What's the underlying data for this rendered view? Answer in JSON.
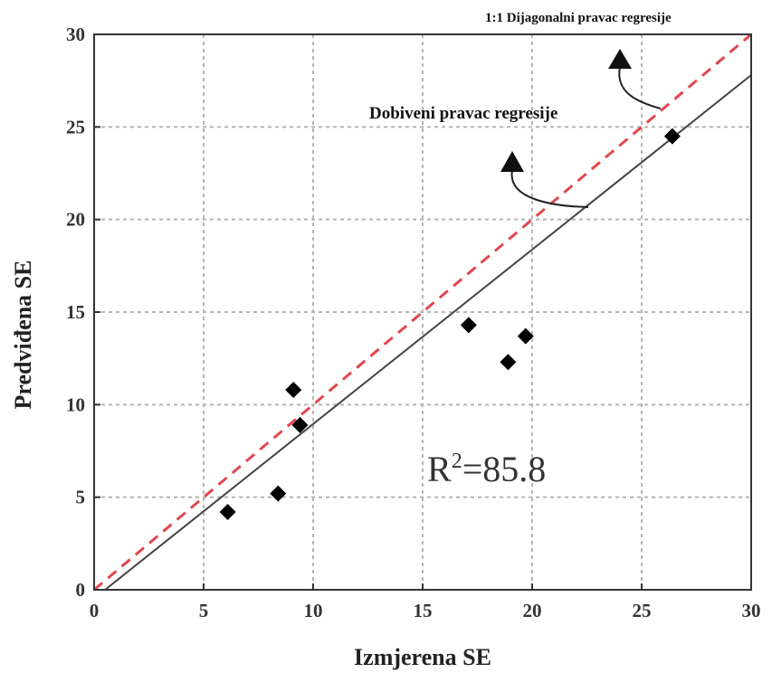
{
  "chart_data": {
    "type": "scatter",
    "title": "",
    "xlabel": "Izmjerena SE",
    "ylabel": "Predviđena SE",
    "xlim": [
      0,
      30
    ],
    "ylim": [
      0,
      30
    ],
    "xticks": [
      0,
      5,
      10,
      15,
      20,
      25,
      30
    ],
    "yticks": [
      0,
      5,
      10,
      15,
      20,
      25,
      30
    ],
    "tick_labels": {
      "x": [
        "0",
        "5",
        "10",
        "15",
        "20",
        "25",
        "30"
      ],
      "y": [
        "0",
        "5",
        "10",
        "15",
        "20",
        "25",
        "30"
      ]
    },
    "grid": true,
    "points": [
      {
        "x": 6.1,
        "y": 4.2
      },
      {
        "x": 8.4,
        "y": 5.2
      },
      {
        "x": 9.1,
        "y": 10.8
      },
      {
        "x": 9.4,
        "y": 8.9
      },
      {
        "x": 17.1,
        "y": 14.3
      },
      {
        "x": 18.9,
        "y": 12.3
      },
      {
        "x": 19.7,
        "y": 13.7
      },
      {
        "x": 26.4,
        "y": 24.5
      }
    ],
    "lines": [
      {
        "label": "1:1 Dijagonalni pravac regresije",
        "style": "dashed",
        "color": "#e0474c",
        "x": [
          0,
          30
        ],
        "y": [
          0,
          30
        ]
      },
      {
        "label": "Dobiveni pravac regresije",
        "style": "solid",
        "color": "#444444",
        "x": [
          0.5,
          30
        ],
        "y": [
          0,
          27.8
        ]
      }
    ],
    "annotations": {
      "diagonal_label": "1:1 Dijagonalni pravac regresije",
      "fit_label": "Dobiveni pravac regresije",
      "r2_prefix": "R",
      "r2_sup": "2",
      "r2_value": "=85.8"
    },
    "colors": {
      "marker": "#000000",
      "grid": "#b5b5b5",
      "axis": "#333333"
    }
  }
}
